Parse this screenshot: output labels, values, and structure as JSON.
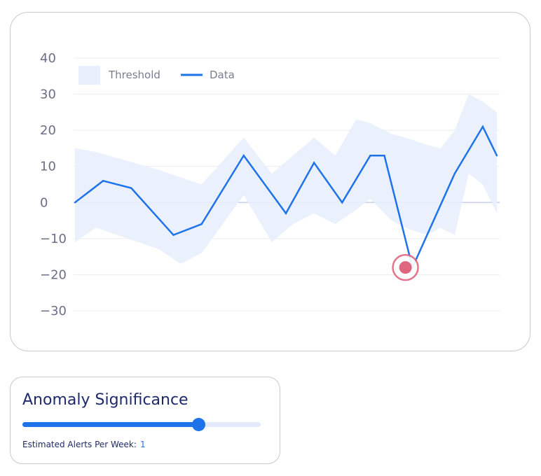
{
  "chart_data": {
    "type": "line",
    "yticks": [
      40,
      30,
      20,
      10,
      0,
      -10,
      -20,
      -30
    ],
    "ylim": [
      -30,
      40
    ],
    "legend": [
      {
        "name": "Threshold",
        "kind": "band",
        "color": "#e8f0fd"
      },
      {
        "name": "Data",
        "kind": "line",
        "color": "#1f73ea"
      }
    ],
    "series": [
      {
        "name": "Data",
        "color": "#1f73ea",
        "x": [
          0,
          2,
          4,
          7,
          9,
          12,
          15,
          17,
          19,
          21,
          22,
          24,
          27,
          29,
          30
        ],
        "values": [
          0,
          6,
          4,
          -9,
          -6,
          13,
          -3,
          11,
          0,
          13,
          13,
          -18,
          8,
          21,
          13
        ]
      }
    ],
    "threshold_band": {
      "name": "Threshold",
      "color": "#e8f0fd",
      "x": [
        0,
        1.5,
        6,
        7.5,
        9,
        12,
        14,
        15.5,
        17,
        18.5,
        20,
        21,
        22.5,
        23.5,
        25,
        26,
        27,
        28,
        29,
        30
      ],
      "upper": [
        15,
        14,
        9,
        7,
        5,
        18,
        8,
        13,
        18,
        13,
        23,
        22,
        19,
        18,
        16,
        15,
        20,
        30,
        28,
        25
      ],
      "lower": [
        -11,
        -7,
        -13,
        -17,
        -14,
        2,
        -11,
        -6,
        -3,
        -6,
        -2,
        1,
        -5,
        -7,
        -9,
        -7,
        -9,
        8,
        5,
        -3
      ]
    },
    "anomalies": [
      {
        "x": 23.5,
        "value": -18,
        "color": "#e0667f"
      }
    ]
  },
  "controls": {
    "title": "Anomaly Significance",
    "slider_value": 0.74,
    "alerts_label": "Estimated Alerts Per Week:",
    "alerts_value": "1"
  }
}
